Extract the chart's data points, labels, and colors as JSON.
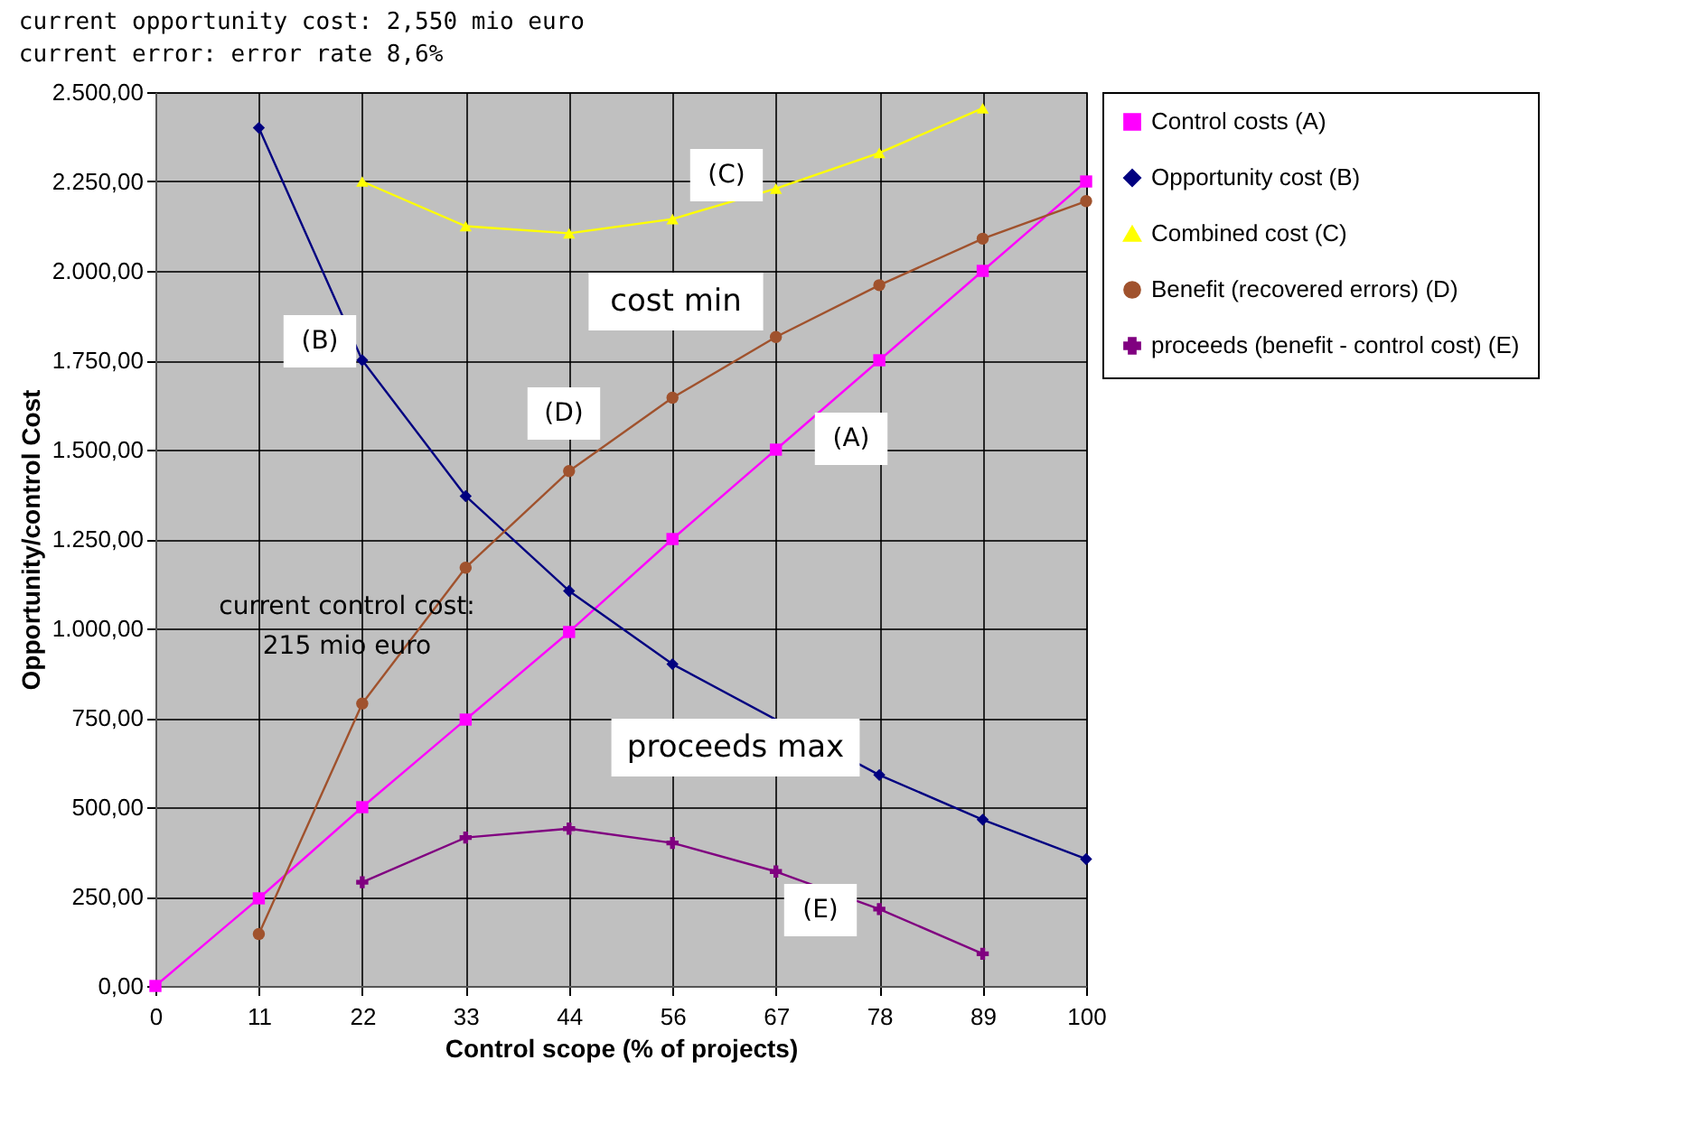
{
  "chart_data": {
    "type": "line",
    "xlabel": "Control scope (% of projects)",
    "ylabel": "Opportunity/control Cost",
    "categories": [
      "0",
      "11",
      "22",
      "33",
      "44",
      "56",
      "67",
      "78",
      "89",
      "100"
    ],
    "ylim": [
      0,
      2500
    ],
    "yticks": [
      {
        "value": 0,
        "label": "0,00"
      },
      {
        "value": 250,
        "label": "250,00"
      },
      {
        "value": 500,
        "label": "500,00"
      },
      {
        "value": 750,
        "label": "750,00"
      },
      {
        "value": 1000,
        "label": "1.000,00"
      },
      {
        "value": 1250,
        "label": "1.250,00"
      },
      {
        "value": 1500,
        "label": "1.500,00"
      },
      {
        "value": 1750,
        "label": "1.750,00"
      },
      {
        "value": 2000,
        "label": "2.000,00"
      },
      {
        "value": 2250,
        "label": "2.250,00"
      },
      {
        "value": 2500,
        "label": "2.500,00"
      }
    ],
    "grid": true,
    "legend": "top right",
    "series": [
      {
        "name": "Control costs (A)",
        "color": "#ff00ff",
        "marker": "square",
        "values": [
          0,
          245,
          500,
          745,
          990,
          1250,
          1500,
          1750,
          2000,
          2250
        ]
      },
      {
        "name": "Opportunity cost (B)",
        "color": "#000080",
        "marker": "diamond",
        "values": [
          null,
          2400,
          1750,
          1370,
          1105,
          900,
          null,
          590,
          465,
          355
        ]
      },
      {
        "name": "Combined cost (C)",
        "color": "#ffff00",
        "marker": "triangle",
        "values": [
          null,
          null,
          2250,
          2125,
          2105,
          2145,
          2230,
          2330,
          2455,
          null
        ]
      },
      {
        "name": "Benefit (recovered errors) (D)",
        "color": "#a0522d",
        "marker": "circle",
        "values": [
          null,
          145,
          790,
          1170,
          1440,
          1645,
          1815,
          1960,
          2090,
          2195
        ]
      },
      {
        "name": "proceeds (benefit - control cost) (E)",
        "color": "#800080",
        "marker": "cross",
        "values": [
          null,
          null,
          290,
          415,
          440,
          400,
          320,
          215,
          90,
          null
        ]
      }
    ],
    "annotations": [
      "current opportunity cost: 2,550 mio euro",
      "current error: error rate 8,6%",
      "current control cost: 215 mio euro",
      "(A)",
      "(B)",
      "(C)",
      "(D)",
      "(E)",
      "cost min",
      "proceeds max"
    ]
  }
}
